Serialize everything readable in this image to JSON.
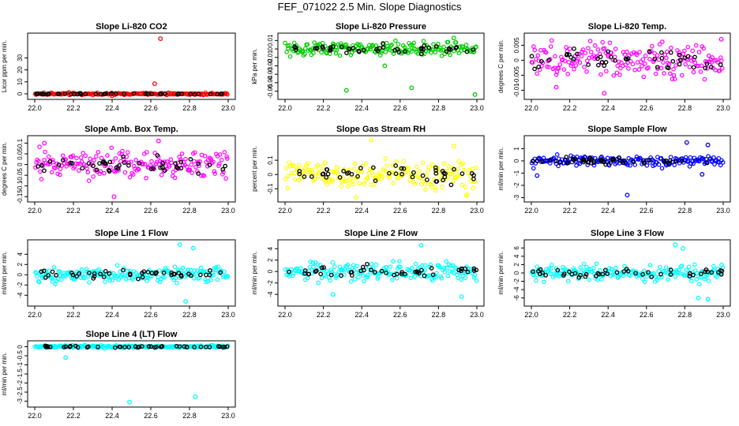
{
  "title": "FEF_071022  2.5 Min. Slope Diagnostics",
  "colors": {
    "red": "#ff0000",
    "green": "#00cc00",
    "magenta": "#ff00ff",
    "yellow": "#ffff00",
    "blue": "#0000ff",
    "cyan": "#00ffff",
    "black": "#000000"
  },
  "chart_data": [
    {
      "type": "scatter",
      "title": "Slope Li-820 CO2",
      "ylabel": "Licor ppm per min.",
      "xlim": [
        22.0,
        23.0
      ],
      "ylim": [
        -2,
        48
      ],
      "xticks": [
        "22.0",
        "22.2",
        "22.4",
        "22.6",
        "22.8",
        "23.0"
      ],
      "yticks": [
        0,
        10,
        20,
        30
      ],
      "color": "red",
      "center": 0,
      "spread": 0.6,
      "outliers": [
        [
          22.65,
          46
        ],
        [
          22.62,
          8.5
        ],
        [
          22.4,
          -1.5
        ]
      ]
    },
    {
      "type": "scatter",
      "title": "Slope Li-820 Pressure",
      "ylabel": "kPa per min.",
      "xlim": [
        22.0,
        23.0
      ],
      "ylim": [
        -0.056,
        0.015
      ],
      "xticks": [
        "22.0",
        "22.2",
        "22.4",
        "22.6",
        "22.8",
        "23.0"
      ],
      "yticks": [
        -0.05,
        -0.04,
        -0.03,
        -0.02,
        -0.01,
        0.0,
        0.01
      ],
      "color": "green",
      "center": 0.0,
      "spread": 0.006,
      "outliers": [
        [
          22.32,
          -0.049
        ],
        [
          22.99,
          -0.054
        ],
        [
          22.66,
          -0.046
        ],
        [
          22.52,
          -0.02
        ],
        [
          22.88,
          0.013
        ]
      ]
    },
    {
      "type": "scatter",
      "title": "Slope Li-820 Temp.",
      "ylabel": "degrees C per min.",
      "xlim": [
        22.0,
        23.0
      ],
      "ylim": [
        -0.012,
        0.008
      ],
      "xticks": [
        "22.0",
        "22.2",
        "22.4",
        "22.6",
        "22.8",
        "23.0"
      ],
      "yticks": [
        -0.01,
        -0.005,
        0.0,
        0.005
      ],
      "color": "magenta",
      "center": 0.0,
      "spread": 0.004,
      "outliers": [
        [
          22.38,
          -0.011
        ],
        [
          22.99,
          0.007
        ],
        [
          22.13,
          -0.009
        ]
      ]
    },
    {
      "type": "scatter",
      "title": "Slope Amb. Box Temp.",
      "ylabel": "degrees C per min.",
      "xlim": [
        22.0,
        23.0
      ],
      "ylim": [
        -0.16,
        0.12
      ],
      "xticks": [
        "22.0",
        "22.2",
        "22.4",
        "22.6",
        "22.8",
        "23.0"
      ],
      "yticks": [
        -0.15,
        -0.1,
        -0.05,
        0.0,
        0.05,
        0.1
      ],
      "color": "magenta",
      "center": 0.0,
      "spread": 0.045,
      "outliers": [
        [
          22.41,
          -0.15
        ],
        [
          22.64,
          0.11
        ],
        [
          22.05,
          0.1
        ]
      ]
    },
    {
      "type": "scatter",
      "title": "Slope Gas Stream RH",
      "ylabel": "percent per min.",
      "xlim": [
        22.0,
        23.0
      ],
      "ylim": [
        -0.17,
        0.25
      ],
      "xticks": [
        "22.0",
        "22.2",
        "22.4",
        "22.6",
        "22.8",
        "23.0"
      ],
      "yticks": [
        -0.1,
        0.0,
        0.1
      ],
      "color": "yellow",
      "center": 0.0,
      "spread": 0.07,
      "outliers": [
        [
          22.37,
          -0.16
        ],
        [
          22.45,
          0.24
        ],
        [
          22.88,
          0.2
        ]
      ]
    },
    {
      "type": "scatter",
      "title": "Slope Sample Flow",
      "ylabel": "ml/min per min.",
      "xlim": [
        22.0,
        23.0
      ],
      "ylim": [
        -3.1,
        1.8
      ],
      "xticks": [
        "22.0",
        "22.2",
        "22.4",
        "22.6",
        "22.8",
        "23.0"
      ],
      "yticks": [
        -3,
        -2,
        -1,
        0,
        1
      ],
      "color": "blue",
      "center": 0.0,
      "spread": 0.3,
      "outliers": [
        [
          22.5,
          -2.8
        ],
        [
          22.81,
          1.5
        ],
        [
          22.92,
          1.3
        ],
        [
          22.03,
          -1.2
        ],
        [
          22.89,
          -1.1
        ]
      ]
    },
    {
      "type": "scatter",
      "title": "Slope Line 1 Flow",
      "ylabel": "ml/min per min.",
      "xlim": [
        22.0,
        23.0
      ],
      "ylim": [
        -5.5,
        6.2
      ],
      "xticks": [
        "22.0",
        "22.2",
        "22.4",
        "22.6",
        "22.8",
        "23.0"
      ],
      "yticks": [
        -4,
        -2,
        0,
        2,
        4
      ],
      "color": "cyan",
      "center": 0.0,
      "spread": 1.1,
      "outliers": [
        [
          22.78,
          -5.2
        ],
        [
          22.75,
          5.9
        ],
        [
          22.82,
          5.2
        ]
      ]
    },
    {
      "type": "scatter",
      "title": "Slope Line 2 Flow",
      "ylabel": "ml/min per min.",
      "xlim": [
        22.0,
        23.0
      ],
      "ylim": [
        -5.5,
        5.0
      ],
      "xticks": [
        "22.0",
        "22.2",
        "22.4",
        "22.6",
        "22.8",
        "23.0"
      ],
      "yticks": [
        -4,
        -2,
        0,
        2,
        4
      ],
      "color": "cyan",
      "center": 0.0,
      "spread": 1.1,
      "outliers": [
        [
          22.71,
          4.6
        ],
        [
          22.92,
          -4.4
        ],
        [
          22.25,
          -4.0
        ]
      ]
    },
    {
      "type": "scatter",
      "title": "Slope Line 3 Flow",
      "ylabel": "ml/min per min.",
      "xlim": [
        22.0,
        23.0
      ],
      "ylim": [
        -7.2,
        7.2
      ],
      "xticks": [
        "22.0",
        "22.2",
        "22.4",
        "22.6",
        "22.8",
        "23.0"
      ],
      "yticks": [
        -6,
        -4,
        -2,
        0,
        2,
        4,
        6
      ],
      "color": "cyan",
      "center": 0.0,
      "spread": 1.3,
      "outliers": [
        [
          22.75,
          6.8
        ],
        [
          22.92,
          -6.3
        ],
        [
          22.87,
          -6.0
        ],
        [
          22.79,
          5.9
        ]
      ]
    },
    {
      "type": "scatter",
      "title": "Slope Line 4 (LT) Flow",
      "ylabel": "ml/min per min.",
      "xlim": [
        22.0,
        23.0
      ],
      "ylim": [
        -3.15,
        0.15
      ],
      "xticks": [
        "22.0",
        "22.2",
        "22.4",
        "22.6",
        "22.8",
        "23.0"
      ],
      "yticks": [
        -3.0,
        -2.5,
        -2.0,
        -1.5,
        -1.0,
        -0.5,
        0.0
      ],
      "color": "cyan",
      "center": 0.0,
      "spread": 0.05,
      "outliers": [
        [
          22.16,
          -0.6
        ],
        [
          22.83,
          -2.75
        ],
        [
          22.49,
          -3.05
        ]
      ]
    }
  ]
}
